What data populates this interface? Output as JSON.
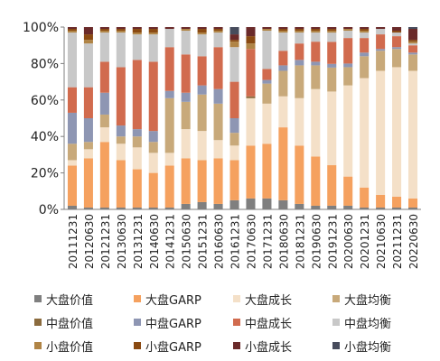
{
  "chart_data": {
    "type": "bar",
    "stacked": true,
    "title": "",
    "xlabel": "",
    "ylabel": "",
    "ylim": [
      0,
      100
    ],
    "y_ticks": [
      "0%",
      "20%",
      "40%",
      "60%",
      "80%",
      "100%"
    ],
    "legend_position": "bottom",
    "categories": [
      "20111231",
      "20120630",
      "20121231",
      "20130630",
      "20131231",
      "20140630",
      "20141231",
      "20150630",
      "20151231",
      "20160630",
      "20161231",
      "20170630",
      "20171231",
      "20180630",
      "20181231",
      "20190630",
      "20191231",
      "20200630",
      "20201231",
      "20210630",
      "20211231",
      "20220630"
    ],
    "series": [
      {
        "name": "大盘价值",
        "color": "#7f7f7f",
        "values": [
          2,
          1,
          1,
          1,
          1,
          1,
          1,
          3,
          4,
          3,
          5,
          6,
          6,
          5,
          3,
          2,
          2,
          2,
          1,
          1,
          1,
          1
        ]
      },
      {
        "name": "大盘GARP",
        "color": "#f5a15f",
        "values": [
          22,
          27,
          36,
          26,
          21,
          19,
          23,
          25,
          23,
          25,
          22,
          29,
          30,
          40,
          32,
          27,
          22,
          16,
          11,
          7,
          6,
          5
        ]
      },
      {
        "name": "大盘成长",
        "color": "#f4e0c8",
        "values": [
          3,
          5,
          8,
          9,
          12,
          11,
          7,
          16,
          16,
          10,
          8,
          26,
          22,
          17,
          26,
          37,
          40,
          50,
          60,
          68,
          71,
          70
        ]
      },
      {
        "name": "大盘均衡",
        "color": "#c8a97a",
        "values": [
          9,
          4,
          7,
          4,
          6,
          6,
          30,
          15,
          20,
          20,
          7,
          0,
          11,
          14,
          18,
          13,
          13,
          10,
          12,
          11,
          10,
          9
        ]
      },
      {
        "name": "中盘价值",
        "color": "#8b6b3e",
        "values": [
          0,
          0,
          0,
          0,
          0,
          0,
          0,
          0,
          0,
          0,
          0,
          1,
          0,
          0,
          0,
          0,
          0,
          0,
          0,
          0,
          0,
          0
        ]
      },
      {
        "name": "中盘GARP",
        "color": "#8e96b3",
        "values": [
          17,
          13,
          12,
          6,
          4,
          6,
          4,
          5,
          5,
          8,
          8,
          0,
          2,
          3,
          3,
          2,
          2,
          2,
          2,
          1,
          1,
          1
        ]
      },
      {
        "name": "中盘成长",
        "color": "#d16b4e",
        "values": [
          14,
          17,
          17,
          32,
          38,
          38,
          24,
          21,
          16,
          23,
          20,
          26,
          6,
          8,
          9,
          11,
          12,
          14,
          8,
          8,
          6,
          4
        ]
      },
      {
        "name": "中盘均衡",
        "color": "#c8c8c8",
        "values": [
          30,
          24,
          16,
          19,
          14,
          15,
          10,
          13,
          12,
          8,
          19,
          0,
          21,
          10,
          6,
          5,
          5,
          4,
          3,
          3,
          2,
          1
        ]
      },
      {
        "name": "小盘价值",
        "color": "#b08445",
        "values": [
          1,
          2,
          1,
          1,
          1,
          1,
          0,
          1,
          1,
          1,
          3,
          3,
          1,
          1,
          1,
          1,
          1,
          1,
          1,
          0,
          0,
          1
        ]
      },
      {
        "name": "小盘GARP",
        "color": "#8a4a12",
        "values": [
          1,
          3,
          1,
          1,
          2,
          2,
          0,
          0,
          2,
          1,
          1,
          4,
          0,
          1,
          1,
          1,
          1,
          0,
          1,
          0,
          1,
          1
        ]
      },
      {
        "name": "小盘成长",
        "color": "#6a2a2a",
        "values": [
          1,
          4,
          1,
          1,
          1,
          1,
          1,
          1,
          1,
          1,
          3,
          5,
          1,
          1,
          1,
          1,
          1,
          1,
          1,
          1,
          2,
          6
        ]
      },
      {
        "name": "小盘均衡",
        "color": "#474c5c",
        "values": [
          0,
          0,
          0,
          0,
          0,
          0,
          0,
          0,
          0,
          0,
          4,
          0,
          0,
          0,
          0,
          0,
          0,
          0,
          0,
          0,
          0,
          1
        ]
      }
    ]
  }
}
